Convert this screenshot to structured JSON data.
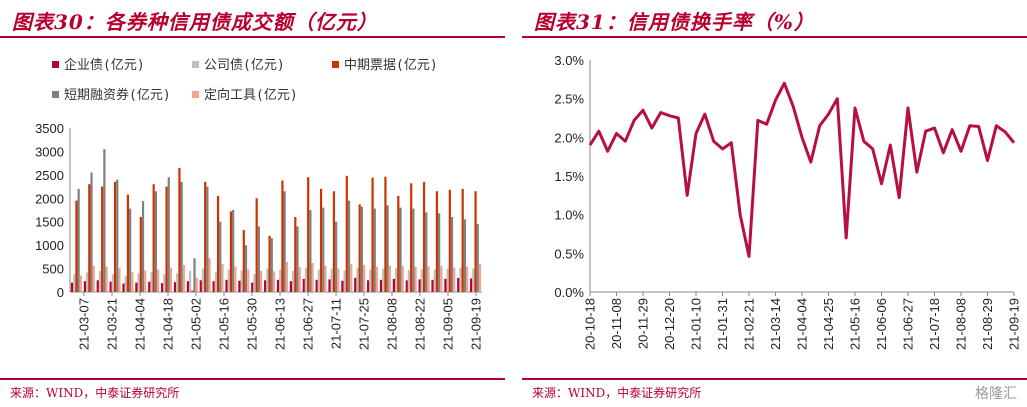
{
  "left": {
    "title": "图表30：各券种信用债成交额（亿元）",
    "source": "来源：WIND，中泰证券研究所",
    "chart_data": {
      "type": "bar",
      "title": "图表30：各券种信用债成交额（亿元）",
      "ylim": [
        0,
        3500
      ],
      "yticks": [
        0,
        500,
        1000,
        1500,
        2000,
        2500,
        3000,
        3500
      ],
      "xticklabels": [
        "21-03-07",
        "21-03-21",
        "21-04-04",
        "21-04-18",
        "21-05-02",
        "21-05-16",
        "21-05-30",
        "21-06-13",
        "21-06-27",
        "21-07-11",
        "21-07-25",
        "21-08-08",
        "21-08-22",
        "21-09-05",
        "21-09-19"
      ],
      "series": [
        {
          "name": "企业债(亿元)",
          "color": "#b8002e",
          "values": [
            200,
            230,
            250,
            220,
            180,
            200,
            220,
            190,
            210,
            230,
            250,
            230,
            260,
            240,
            200,
            250,
            260,
            230,
            280,
            260,
            270,
            240,
            300,
            250,
            260,
            280,
            250,
            270,
            260,
            280,
            300,
            290
          ]
        },
        {
          "name": "公司债(亿元)",
          "color": "#bfbfbf",
          "values": [
            380,
            420,
            450,
            380,
            350,
            400,
            420,
            380,
            400,
            450,
            500,
            420,
            480,
            460,
            380,
            500,
            480,
            450,
            520,
            480,
            500,
            460,
            520,
            480,
            500,
            510,
            470,
            490,
            480,
            500,
            520,
            500
          ]
        },
        {
          "name": "中期票据(亿元)",
          "color": "#cc3300",
          "values": [
            1950,
            2300,
            2250,
            2350,
            2080,
            1600,
            2300,
            2250,
            2650,
            30,
            2350,
            2050,
            1720,
            1320,
            2000,
            1200,
            2380,
            1600,
            2450,
            2200,
            2150,
            2480,
            1870,
            2440,
            2460,
            2050,
            2320,
            2350,
            2150,
            2180,
            2200,
            2150
          ]
        },
        {
          "name": "短期融资券(亿元)",
          "color": "#808080",
          "values": [
            2200,
            2550,
            3050,
            2400,
            1780,
            1940,
            2150,
            2450,
            2350,
            720,
            2250,
            1500,
            1750,
            1000,
            1400,
            1150,
            2150,
            1400,
            1750,
            1800,
            1500,
            1950,
            1820,
            1780,
            1850,
            1800,
            1780,
            1700,
            1680,
            1600,
            1550,
            1450
          ]
        },
        {
          "name": "定向工具(亿元)",
          "color": "#f4a48a",
          "values": [
            350,
            560,
            540,
            510,
            420,
            460,
            480,
            520,
            580,
            300,
            720,
            600,
            540,
            480,
            450,
            440,
            640,
            530,
            620,
            560,
            500,
            600,
            580,
            540,
            560,
            560,
            540,
            550,
            560,
            520,
            540,
            600
          ]
        }
      ]
    }
  },
  "right": {
    "title": "图表31：信用债换手率（%）",
    "source": "来源：WIND，中泰证券研究所",
    "watermark": "格隆汇",
    "chart_data": {
      "type": "line",
      "title": "图表31：信用债换手率（%）",
      "ylim": [
        0,
        3.0
      ],
      "yticks": [
        "0.0%",
        "0.5%",
        "1.0%",
        "1.5%",
        "2.0%",
        "2.5%",
        "3.0%"
      ],
      "xticklabels": [
        "20-10-18",
        "20-11-08",
        "20-11-29",
        "20-12-20",
        "21-01-10",
        "21-01-31",
        "21-02-21",
        "21-03-14",
        "21-04-04",
        "21-04-25",
        "21-05-16",
        "21-06-06",
        "21-06-27",
        "21-07-18",
        "21-08-08",
        "21-08-29",
        "21-09-19"
      ],
      "series": [
        {
          "name": "信用债换手率",
          "color": "#b8103e",
          "values": [
            1.9,
            2.08,
            1.82,
            2.05,
            1.95,
            2.22,
            2.35,
            2.12,
            2.32,
            2.28,
            2.25,
            1.25,
            2.05,
            2.3,
            1.95,
            1.85,
            1.93,
            1.0,
            0.46,
            2.22,
            2.17,
            2.48,
            2.7,
            2.4,
            2.0,
            1.68,
            2.15,
            2.3,
            2.5,
            0.7,
            2.38,
            1.95,
            1.85,
            1.4,
            1.9,
            1.22,
            2.38,
            1.55,
            2.08,
            2.12,
            1.8,
            2.1,
            1.82,
            2.15,
            2.14,
            1.7,
            2.15,
            2.07,
            1.93
          ]
        }
      ]
    }
  }
}
